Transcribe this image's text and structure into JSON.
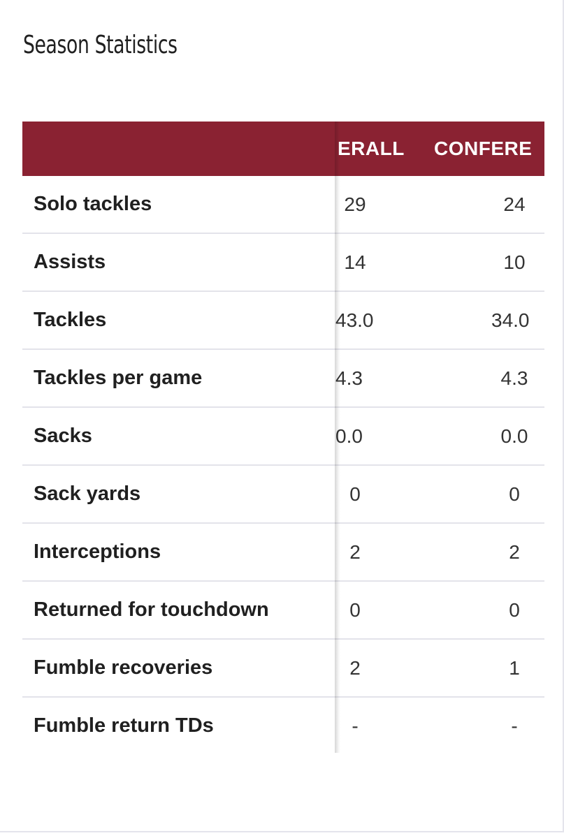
{
  "section": {
    "title": "Season Statistics"
  },
  "table": {
    "columns": {
      "overall": "ERALL",
      "conference": "CONFERE"
    },
    "rows": [
      {
        "label": "Solo tackles",
        "overall": "29",
        "conference": "24"
      },
      {
        "label": "Assists",
        "overall": "14",
        "conference": "10"
      },
      {
        "label": "Tackles",
        "overall": "43.0",
        "conference": "34.0"
      },
      {
        "label": "Tackles per game",
        "overall": "4.3",
        "conference": "4.3"
      },
      {
        "label": "Sacks",
        "overall": "0.0",
        "conference": "0.0"
      },
      {
        "label": "Sack yards",
        "overall": "0",
        "conference": "0"
      },
      {
        "label": "Interceptions",
        "overall": "2",
        "conference": "2"
      },
      {
        "label": "Returned for touchdown",
        "overall": "0",
        "conference": "0"
      },
      {
        "label": "Fumble recoveries",
        "overall": "2",
        "conference": "1"
      },
      {
        "label": "Fumble return TDs",
        "overall": "-",
        "conference": "-"
      }
    ]
  },
  "colors": {
    "header_bg": "#8a2232",
    "header_text": "#ffffff",
    "row_divider": "#e3e3ea"
  }
}
